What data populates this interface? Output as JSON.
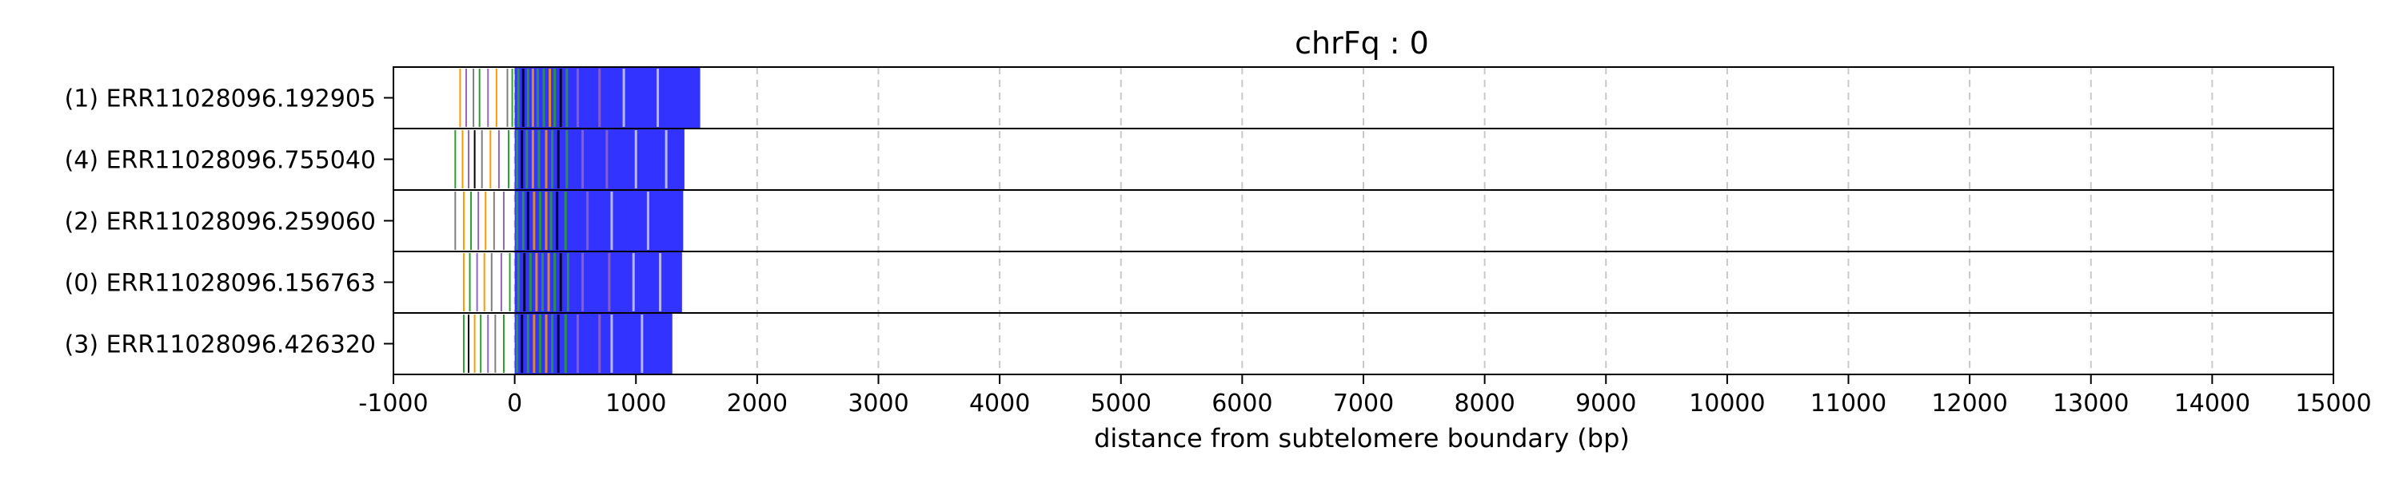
{
  "chart_data": {
    "type": "bar",
    "title": "chrFq : 0",
    "xlabel": "distance from subtelomere boundary (bp)",
    "ylabel": "",
    "xlim": [
      -1000,
      15000
    ],
    "xticks": [
      -1000,
      0,
      1000,
      2000,
      3000,
      4000,
      5000,
      6000,
      7000,
      8000,
      9000,
      10000,
      11000,
      12000,
      13000,
      14000,
      15000
    ],
    "xtick_labels": [
      "-1000",
      "0",
      "1000",
      "2000",
      "3000",
      "4000",
      "5000",
      "6000",
      "7000",
      "8000",
      "9000",
      "10000",
      "11000",
      "12000",
      "13000",
      "14000",
      "15000"
    ],
    "grid": "vertical dashed",
    "colors": {
      "repeat_block": "#3333ff",
      "separator": "#cfd0e6",
      "variant_green": "#2ca02c",
      "variant_orange": "#ff9900",
      "variant_purple": "#9467bd",
      "variant_gray": "#7f7f7f",
      "variant_black": "#000000"
    },
    "reads": [
      {
        "label": "(1) ERR11028096.192905",
        "block": [
          0,
          1530
        ],
        "variants": [
          {
            "x": -450,
            "color": "#ff9900"
          },
          {
            "x": -400,
            "color": "#9467bd"
          },
          {
            "x": -340,
            "color": "#7f7f7f"
          },
          {
            "x": -290,
            "color": "#2ca02c"
          },
          {
            "x": -220,
            "color": "#9467bd"
          },
          {
            "x": -150,
            "color": "#ff9900"
          },
          {
            "x": -60,
            "color": "#7f7f7f"
          },
          {
            "x": -20,
            "color": "#2ca02c"
          },
          {
            "x": 30,
            "color": "#2ca02c"
          },
          {
            "x": 70,
            "color": "#000000"
          },
          {
            "x": 110,
            "color": "#2ca02c"
          },
          {
            "x": 150,
            "color": "#ff9900"
          },
          {
            "x": 190,
            "color": "#2ca02c"
          },
          {
            "x": 240,
            "color": "#2ca02c"
          },
          {
            "x": 290,
            "color": "#ff9900"
          },
          {
            "x": 330,
            "color": "#2ca02c"
          },
          {
            "x": 380,
            "color": "#000000"
          },
          {
            "x": 430,
            "color": "#2ca02c"
          },
          {
            "x": 520,
            "color": "#9467bd"
          },
          {
            "x": 700,
            "color": "#9467bd"
          },
          {
            "x": 900,
            "color": "#cfd0e6"
          },
          {
            "x": 1180,
            "color": "#cfd0e6"
          }
        ]
      },
      {
        "label": "(4) ERR11028096.755040",
        "block": [
          0,
          1400
        ],
        "variants": [
          {
            "x": -490,
            "color": "#2ca02c"
          },
          {
            "x": -430,
            "color": "#ff9900"
          },
          {
            "x": -380,
            "color": "#9467bd"
          },
          {
            "x": -330,
            "color": "#000000"
          },
          {
            "x": -270,
            "color": "#7f7f7f"
          },
          {
            "x": -200,
            "color": "#ff9900"
          },
          {
            "x": -130,
            "color": "#9467bd"
          },
          {
            "x": -50,
            "color": "#2ca02c"
          },
          {
            "x": 20,
            "color": "#2ca02c"
          },
          {
            "x": 60,
            "color": "#000000"
          },
          {
            "x": 100,
            "color": "#2ca02c"
          },
          {
            "x": 150,
            "color": "#ff9900"
          },
          {
            "x": 200,
            "color": "#2ca02c"
          },
          {
            "x": 260,
            "color": "#ff9900"
          },
          {
            "x": 310,
            "color": "#2ca02c"
          },
          {
            "x": 360,
            "color": "#000000"
          },
          {
            "x": 430,
            "color": "#2ca02c"
          },
          {
            "x": 560,
            "color": "#9467bd"
          },
          {
            "x": 760,
            "color": "#9467bd"
          },
          {
            "x": 1000,
            "color": "#cfd0e6"
          },
          {
            "x": 1250,
            "color": "#cfd0e6"
          }
        ]
      },
      {
        "label": "(2) ERR11028096.259060",
        "block": [
          0,
          1390
        ],
        "variants": [
          {
            "x": -490,
            "color": "#7f7f7f"
          },
          {
            "x": -420,
            "color": "#ff9900"
          },
          {
            "x": -360,
            "color": "#2ca02c"
          },
          {
            "x": -300,
            "color": "#9467bd"
          },
          {
            "x": -240,
            "color": "#ff9900"
          },
          {
            "x": -170,
            "color": "#7f7f7f"
          },
          {
            "x": -90,
            "color": "#9467bd"
          },
          {
            "x": 20,
            "color": "#2ca02c"
          },
          {
            "x": 70,
            "color": "#2ca02c"
          },
          {
            "x": 110,
            "color": "#000000"
          },
          {
            "x": 160,
            "color": "#ff9900"
          },
          {
            "x": 210,
            "color": "#2ca02c"
          },
          {
            "x": 260,
            "color": "#ff9900"
          },
          {
            "x": 300,
            "color": "#2ca02c"
          },
          {
            "x": 350,
            "color": "#000000"
          },
          {
            "x": 420,
            "color": "#2ca02c"
          },
          {
            "x": 600,
            "color": "#9467bd"
          },
          {
            "x": 800,
            "color": "#cfd0e6"
          },
          {
            "x": 1100,
            "color": "#cfd0e6"
          }
        ]
      },
      {
        "label": "(0) ERR11028096.156763",
        "block": [
          0,
          1380
        ],
        "variants": [
          {
            "x": -420,
            "color": "#ff9900"
          },
          {
            "x": -370,
            "color": "#2ca02c"
          },
          {
            "x": -310,
            "color": "#9467bd"
          },
          {
            "x": -250,
            "color": "#ff9900"
          },
          {
            "x": -190,
            "color": "#7f7f7f"
          },
          {
            "x": -110,
            "color": "#9467bd"
          },
          {
            "x": -40,
            "color": "#2ca02c"
          },
          {
            "x": 30,
            "color": "#2ca02c"
          },
          {
            "x": 80,
            "color": "#000000"
          },
          {
            "x": 130,
            "color": "#2ca02c"
          },
          {
            "x": 180,
            "color": "#ff9900"
          },
          {
            "x": 230,
            "color": "#2ca02c"
          },
          {
            "x": 280,
            "color": "#ff9900"
          },
          {
            "x": 330,
            "color": "#2ca02c"
          },
          {
            "x": 380,
            "color": "#000000"
          },
          {
            "x": 440,
            "color": "#2ca02c"
          },
          {
            "x": 560,
            "color": "#9467bd"
          },
          {
            "x": 780,
            "color": "#9467bd"
          },
          {
            "x": 980,
            "color": "#cfd0e6"
          },
          {
            "x": 1200,
            "color": "#cfd0e6"
          }
        ]
      },
      {
        "label": "(3) ERR11028096.426320",
        "block": [
          0,
          1300
        ],
        "variants": [
          {
            "x": -420,
            "color": "#2ca02c"
          },
          {
            "x": -380,
            "color": "#000000"
          },
          {
            "x": -330,
            "color": "#ff9900"
          },
          {
            "x": -280,
            "color": "#2ca02c"
          },
          {
            "x": -220,
            "color": "#9467bd"
          },
          {
            "x": -160,
            "color": "#7f7f7f"
          },
          {
            "x": -90,
            "color": "#2ca02c"
          },
          {
            "x": 20,
            "color": "#2ca02c"
          },
          {
            "x": 60,
            "color": "#000000"
          },
          {
            "x": 110,
            "color": "#2ca02c"
          },
          {
            "x": 160,
            "color": "#ff9900"
          },
          {
            "x": 210,
            "color": "#2ca02c"
          },
          {
            "x": 260,
            "color": "#ff9900"
          },
          {
            "x": 310,
            "color": "#2ca02c"
          },
          {
            "x": 360,
            "color": "#000000"
          },
          {
            "x": 420,
            "color": "#2ca02c"
          },
          {
            "x": 520,
            "color": "#9467bd"
          },
          {
            "x": 700,
            "color": "#9467bd"
          },
          {
            "x": 800,
            "color": "#cfd0e6"
          },
          {
            "x": 1050,
            "color": "#cfd0e6"
          }
        ]
      }
    ]
  }
}
